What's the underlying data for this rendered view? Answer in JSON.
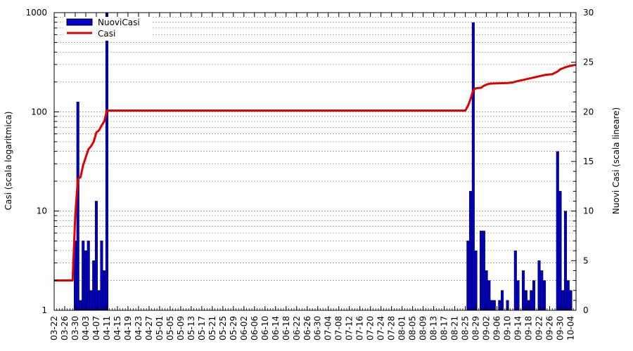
{
  "chart_data": {
    "type": "bar",
    "ylabel_left": "Casi (scala logaritmica)",
    "ylabel_right": "Nuovi Casi (scala lineare)",
    "left_axis": {
      "scale": "log",
      "range": [
        1,
        1000
      ],
      "ticks": [
        "1",
        "10",
        "100",
        "1000"
      ]
    },
    "right_axis": {
      "scale": "linear",
      "range": [
        0,
        30
      ],
      "ticks": [
        "0",
        "5",
        "10",
        "15",
        "20",
        "25",
        "30"
      ]
    },
    "grid": true,
    "legend_position": "top-left",
    "x_start": "03-22",
    "x_end": "10-06",
    "x_ticks": [
      "03-22",
      "03-26",
      "03-30",
      "04-03",
      "04-07",
      "04-11",
      "04-15",
      "04-19",
      "04-23",
      "04-27",
      "05-01",
      "05-05",
      "05-09",
      "05-13",
      "05-17",
      "05-21",
      "05-25",
      "05-29",
      "06-02",
      "06-06",
      "06-10",
      "06-14",
      "06-18",
      "06-22",
      "06-26",
      "06-30",
      "07-04",
      "07-08",
      "07-12",
      "07-16",
      "07-20",
      "07-24",
      "07-28",
      "08-01",
      "08-05",
      "08-09",
      "08-13",
      "08-17",
      "08-21",
      "08-25",
      "08-29",
      "09-02",
      "09-06",
      "09-10",
      "09-14",
      "09-18",
      "09-22",
      "09-26",
      "09-30",
      "10-04"
    ],
    "series": [
      {
        "name": "NuoviCasi",
        "type": "bar",
        "axis": "right",
        "color": "#0000cc",
        "points": [
          [
            "03-30",
            7
          ],
          [
            "03-31",
            21
          ],
          [
            "04-01",
            1
          ],
          [
            "04-02",
            7
          ],
          [
            "04-03",
            6
          ],
          [
            "04-04",
            7
          ],
          [
            "04-05",
            2
          ],
          [
            "04-06",
            5
          ],
          [
            "04-07",
            11
          ],
          [
            "04-08",
            2
          ],
          [
            "04-09",
            7
          ],
          [
            "04-10",
            4
          ],
          [
            "04-11",
            30
          ],
          [
            "08-26",
            7
          ],
          [
            "08-27",
            12
          ],
          [
            "08-28",
            29
          ],
          [
            "08-29",
            6
          ],
          [
            "08-31",
            8
          ],
          [
            "09-01",
            8
          ],
          [
            "09-02",
            4
          ],
          [
            "09-03",
            3
          ],
          [
            "09-04",
            1
          ],
          [
            "09-05",
            1
          ],
          [
            "09-07",
            1
          ],
          [
            "09-08",
            2
          ],
          [
            "09-10",
            1
          ],
          [
            "09-13",
            6
          ],
          [
            "09-14",
            3
          ],
          [
            "09-16",
            4
          ],
          [
            "09-17",
            2
          ],
          [
            "09-18",
            1
          ],
          [
            "09-19",
            2
          ],
          [
            "09-20",
            3
          ],
          [
            "09-22",
            5
          ],
          [
            "09-23",
            4
          ],
          [
            "09-24",
            3
          ],
          [
            "09-29",
            16
          ],
          [
            "09-30",
            12
          ],
          [
            "10-01",
            2
          ],
          [
            "10-02",
            10
          ],
          [
            "10-03",
            3
          ],
          [
            "10-04",
            2
          ]
        ]
      },
      {
        "name": "Casi",
        "type": "line",
        "axis": "left",
        "color": "#e00000",
        "points": [
          [
            "03-22",
            2
          ],
          [
            "03-29",
            2
          ],
          [
            "03-30",
            9
          ],
          [
            "03-31",
            21
          ],
          [
            "04-01",
            22
          ],
          [
            "04-02",
            29
          ],
          [
            "04-03",
            35
          ],
          [
            "04-04",
            42
          ],
          [
            "04-05",
            45
          ],
          [
            "04-06",
            50
          ],
          [
            "04-07",
            62
          ],
          [
            "04-08",
            65
          ],
          [
            "04-09",
            73
          ],
          [
            "04-10",
            80
          ],
          [
            "04-11",
            103
          ],
          [
            "08-25",
            103
          ],
          [
            "08-26",
            115
          ],
          [
            "08-27",
            135
          ],
          [
            "08-28",
            165
          ],
          [
            "08-29",
            173
          ],
          [
            "08-31",
            175
          ],
          [
            "09-01",
            183
          ],
          [
            "09-02",
            188
          ],
          [
            "09-03",
            192
          ],
          [
            "09-04",
            193
          ],
          [
            "09-10",
            195
          ],
          [
            "09-12",
            198
          ],
          [
            "09-14",
            205
          ],
          [
            "09-16",
            210
          ],
          [
            "09-18",
            216
          ],
          [
            "09-20",
            222
          ],
          [
            "09-22",
            228
          ],
          [
            "09-24",
            235
          ],
          [
            "09-27",
            240
          ],
          [
            "09-29",
            255
          ],
          [
            "09-30",
            268
          ],
          [
            "10-02",
            282
          ],
          [
            "10-04",
            292
          ],
          [
            "10-06",
            298
          ]
        ]
      }
    ]
  }
}
